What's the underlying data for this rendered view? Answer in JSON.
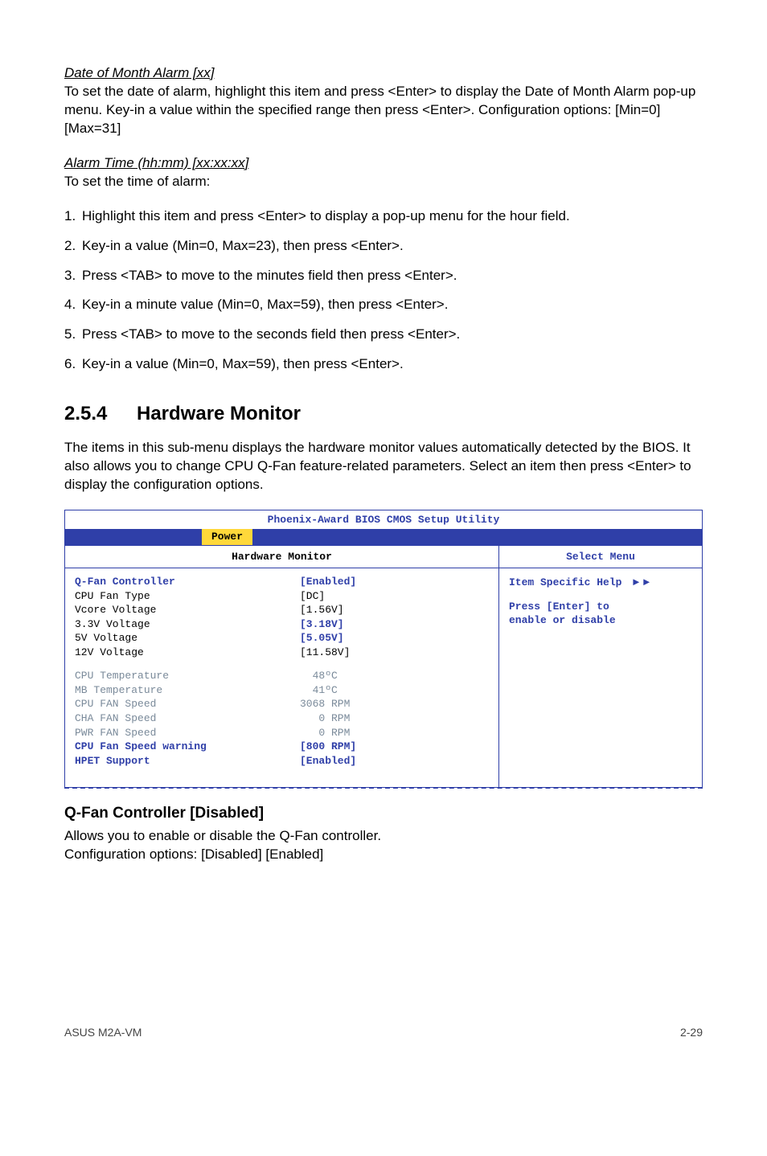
{
  "intro": {
    "dateHead": "Date of Month Alarm [xx]",
    "datePara": "To set the date of alarm, highlight this item and press <Enter> to display the Date of Month Alarm pop-up menu. Key-in a value within the specified range then press <Enter>. Configuration options: [Min=0] [Max=31]",
    "alarmHead": "Alarm Time (hh:mm) [xx:xx:xx]",
    "alarmPara": "To set the time of alarm:",
    "steps": [
      "Highlight this item and press <Enter> to display a pop-up menu for the hour field.",
      "Key-in a value (Min=0, Max=23), then press <Enter>.",
      "Press <TAB> to move to the minutes field then press <Enter>.",
      "Key-in a minute value (Min=0, Max=59), then press <Enter>.",
      "Press <TAB> to move to the seconds field then press <Enter>.",
      "Key-in a value (Min=0, Max=59), then press <Enter>."
    ]
  },
  "section": {
    "num": "2.5.4",
    "title": "Hardware Monitor",
    "para": "The items in this sub-menu displays the hardware monitor values automatically detected by the BIOS. It also allows you to change CPU Q-Fan feature-related parameters. Select an item then press <Enter> to display the configuration options."
  },
  "bios": {
    "utilTitle": "Phoenix-Award BIOS CMOS Setup Utility",
    "tab": "Power",
    "panelTitle": "Hardware Monitor",
    "selectMenu": "Select Menu",
    "help1": "Item Specific Help",
    "help2": "Press [Enter] to",
    "help3": "enable or disable",
    "rows": [
      {
        "label": "Q-Fan Controller",
        "value": "[Enabled]",
        "lcolor": "blue",
        "vcolor": "blue"
      },
      {
        "label": "CPU Fan Type",
        "value": "[DC]",
        "lcolor": "",
        "vcolor": ""
      },
      {
        "label": "Vcore Voltage",
        "value": "[1.56V]",
        "lcolor": "",
        "vcolor": ""
      },
      {
        "label": "3.3V Voltage",
        "value": "[3.18V]",
        "lcolor": "",
        "vcolor": "blue"
      },
      {
        "label": "5V Voltage",
        "value": "[5.05V]",
        "lcolor": "",
        "vcolor": "blue"
      },
      {
        "label": "12V Voltage",
        "value": "[11.58V]",
        "lcolor": "",
        "vcolor": ""
      }
    ],
    "rows2": [
      {
        "label": "CPU Temperature",
        "value": "  48ºC",
        "lcolor": "gray",
        "vcolor": "gray"
      },
      {
        "label": "MB Temperature",
        "value": "  41ºC",
        "lcolor": "gray",
        "vcolor": "gray"
      },
      {
        "label": "CPU FAN Speed",
        "value": "3068 RPM",
        "lcolor": "gray",
        "vcolor": "gray"
      },
      {
        "label": "CHA FAN Speed",
        "value": "   0 RPM",
        "lcolor": "gray",
        "vcolor": "gray"
      },
      {
        "label": "PWR FAN Speed",
        "value": "   0 RPM",
        "lcolor": "gray",
        "vcolor": "gray"
      },
      {
        "label": "CPU Fan Speed warning",
        "value": "[800 RPM]",
        "lcolor": "blue",
        "vcolor": "blue"
      },
      {
        "label": "HPET Support",
        "value": "[Enabled]",
        "lcolor": "blue",
        "vcolor": "blue"
      }
    ]
  },
  "qfan": {
    "head": "Q-Fan Controller [Disabled]",
    "line1": "Allows you to enable or disable the Q-Fan controller.",
    "line2": "Configuration options: [Disabled] [Enabled]"
  },
  "footer": {
    "left": "ASUS M2A-VM",
    "right": "2-29"
  }
}
